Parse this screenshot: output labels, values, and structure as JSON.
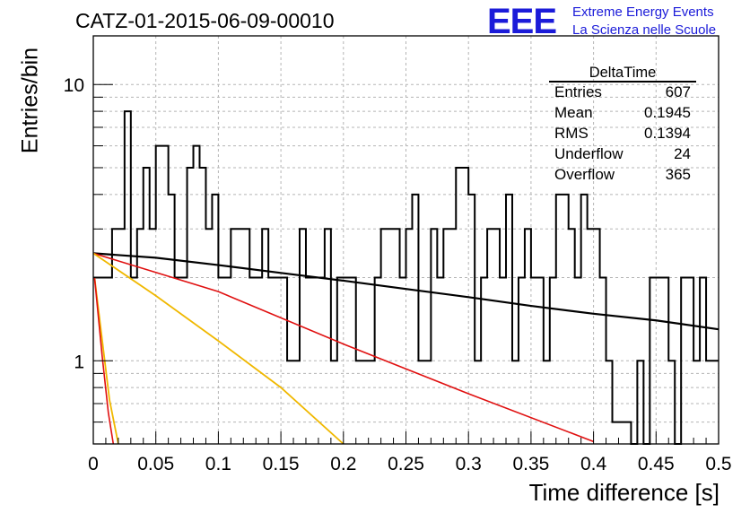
{
  "header": {
    "title": "CATZ-01-2015-06-09-00010",
    "logo": "EEE",
    "logo_line1": "Extreme Energy Events",
    "logo_line2": "La Scienza nelle Scuole"
  },
  "stats": {
    "name": "DeltaTime",
    "rows": [
      {
        "label": "Entries",
        "value": "607"
      },
      {
        "label": "Mean",
        "value": "0.1945"
      },
      {
        "label": "RMS",
        "value": "0.1394"
      },
      {
        "label": "Underflow",
        "value": "24"
      },
      {
        "label": "Overflow",
        "value": "365"
      }
    ]
  },
  "chart_data": {
    "type": "histogram",
    "xlabel": "Time difference [s]",
    "ylabel": "Entries/bin",
    "xlim": [
      0,
      0.5
    ],
    "ylim": [
      0.5,
      15
    ],
    "y_scale": "log",
    "grid": true,
    "x_ticks": [
      "0",
      "0.05",
      "0.1",
      "0.15",
      "0.2",
      "0.25",
      "0.3",
      "0.35",
      "0.4",
      "0.45",
      "0.5"
    ],
    "y_ticks": [
      "1",
      "10"
    ],
    "bin_width": 0.005,
    "histogram_values": [
      2,
      2,
      2,
      3,
      3,
      8,
      2,
      3,
      5,
      3,
      6,
      6,
      4,
      2,
      2,
      5,
      6,
      5,
      3,
      4,
      2,
      2,
      3,
      3,
      3,
      2,
      2,
      3,
      2,
      2,
      2,
      1,
      1,
      3,
      2,
      2,
      2,
      3,
      1,
      2,
      2,
      2,
      1,
      1,
      1,
      2,
      3,
      3,
      3,
      2,
      3,
      4,
      1,
      1,
      3,
      2,
      3,
      3,
      5,
      5,
      4,
      1,
      2,
      3,
      3,
      2,
      4,
      1,
      2,
      3,
      2,
      2,
      1,
      2,
      4,
      4,
      3,
      2,
      4,
      3,
      3,
      2,
      1,
      0.6,
      0.6,
      0.6,
      0,
      1,
      0,
      2,
      2,
      2,
      1,
      0,
      2,
      2,
      1,
      2,
      1,
      1
    ],
    "series": [
      {
        "name": "",
        "color": "#000000",
        "width": 2.2,
        "points": [
          [
            0,
            2.45
          ],
          [
            0.05,
            2.36
          ],
          [
            0.1,
            2.22
          ],
          [
            0.15,
            2.08
          ],
          [
            0.2,
            1.95
          ],
          [
            0.25,
            1.82
          ],
          [
            0.3,
            1.7
          ],
          [
            0.35,
            1.58
          ],
          [
            0.4,
            1.48
          ],
          [
            0.45,
            1.4
          ],
          [
            0.5,
            1.3
          ]
        ]
      },
      {
        "name": "",
        "color": "#e01010",
        "width": 1.6,
        "points": [
          [
            0,
            2.45
          ],
          [
            0.1,
            1.78
          ],
          [
            0.2,
            1.15
          ],
          [
            0.3,
            0.76
          ],
          [
            0.4,
            0.51
          ]
        ]
      },
      {
        "name": "",
        "color": "#f0b800",
        "width": 1.8,
        "points": [
          [
            0,
            2.45
          ],
          [
            0.05,
            1.72
          ],
          [
            0.1,
            1.18
          ],
          [
            0.15,
            0.8
          ],
          [
            0.2,
            0.5
          ]
        ]
      },
      {
        "name": "",
        "color": "#f0b800",
        "width": 1.8,
        "points": [
          [
            0.001,
            2.0
          ],
          [
            0.008,
            1.1
          ],
          [
            0.013,
            0.72
          ],
          [
            0.02,
            0.5
          ]
        ]
      },
      {
        "name": "",
        "color": "#e01010",
        "width": 1.6,
        "points": [
          [
            0.001,
            2.0
          ],
          [
            0.007,
            1.05
          ],
          [
            0.012,
            0.65
          ],
          [
            0.016,
            0.5
          ]
        ]
      }
    ]
  }
}
